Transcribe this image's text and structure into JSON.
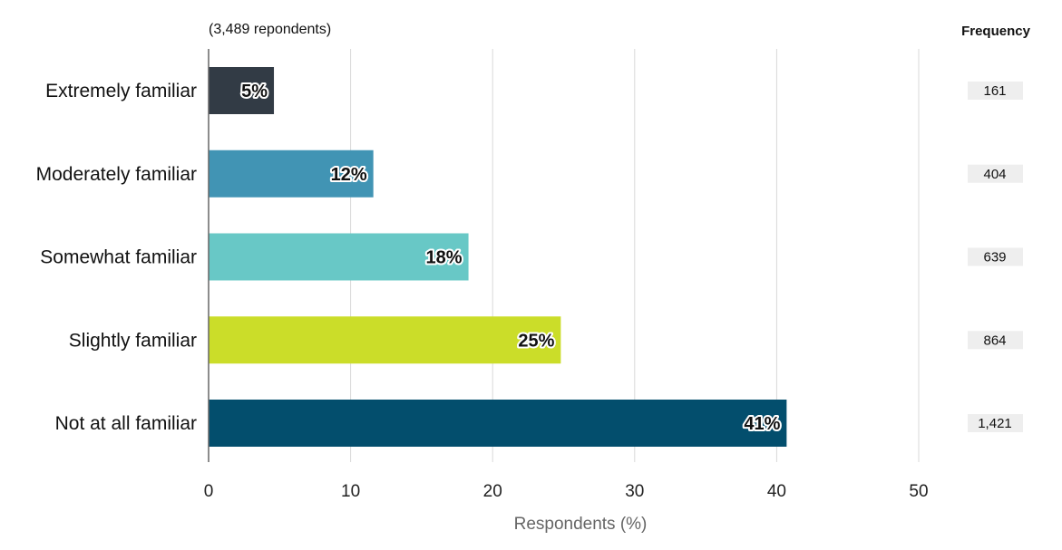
{
  "chart_data": {
    "type": "bar",
    "orientation": "horizontal",
    "subtitle": "(3,489 repondents)",
    "xlabel": "Respondents (%)",
    "ylabel": "",
    "xlim": [
      0,
      50
    ],
    "xticks": [
      0,
      10,
      20,
      30,
      40,
      50
    ],
    "grid": true,
    "categories": [
      "Extremely familiar",
      "Moderately familiar",
      "Somewhat familiar",
      "Slightly familiar",
      "Not at all familiar"
    ],
    "values": [
      4.6,
      11.6,
      18.3,
      24.8,
      40.7
    ],
    "data_labels": [
      "5%",
      "12%",
      "18%",
      "25%",
      "41%"
    ],
    "colors": [
      "#323b45",
      "#4194b4",
      "#68c8c6",
      "#cbdd29",
      "#034e6d"
    ],
    "frequency": {
      "title": "Frequency",
      "values": [
        "161",
        "404",
        "639",
        "864",
        "1,421"
      ]
    }
  }
}
